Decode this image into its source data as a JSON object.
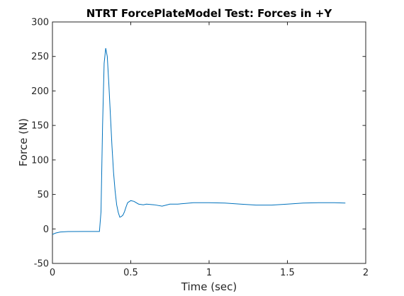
{
  "chart_data": {
    "type": "line",
    "title": "NTRT ForcePlateModel Test: Forces in +Y",
    "xlabel": "Time (sec)",
    "ylabel": "Force (N)",
    "xlim": [
      0,
      2
    ],
    "ylim": [
      -50,
      300
    ],
    "xticks": [
      0,
      0.5,
      1,
      1.5,
      2
    ],
    "xtick_labels": [
      "0",
      "0.5",
      "1",
      "1.5",
      "2"
    ],
    "yticks": [
      -50,
      0,
      50,
      100,
      150,
      200,
      250,
      300
    ],
    "ytick_labels": [
      "-50",
      "0",
      "50",
      "100",
      "150",
      "200",
      "250",
      "300"
    ],
    "grid": false,
    "series": [
      {
        "color": "#0072bd",
        "x": [
          0,
          0.02,
          0.05,
          0.1,
          0.2,
          0.3,
          0.31,
          0.32,
          0.33,
          0.34,
          0.35,
          0.36,
          0.37,
          0.38,
          0.39,
          0.4,
          0.41,
          0.42,
          0.43,
          0.44,
          0.45,
          0.46,
          0.47,
          0.48,
          0.5,
          0.52,
          0.55,
          0.58,
          0.6,
          0.65,
          0.7,
          0.75,
          0.8,
          0.85,
          0.9,
          1.0,
          1.1,
          1.2,
          1.3,
          1.4,
          1.5,
          1.6,
          1.7,
          1.8,
          1.87
        ],
        "y": [
          -8,
          -6,
          -4.5,
          -3.8,
          -3.7,
          -3.7,
          25,
          150,
          240,
          262,
          250,
          210,
          165,
          120,
          82,
          55,
          35,
          24,
          17,
          18,
          20,
          25,
          32,
          38,
          41,
          40,
          36,
          35,
          36,
          35,
          33,
          36,
          36,
          37,
          38,
          38,
          37.5,
          36,
          34.5,
          34.5,
          36,
          37.5,
          38,
          38,
          37.5
        ]
      }
    ]
  }
}
